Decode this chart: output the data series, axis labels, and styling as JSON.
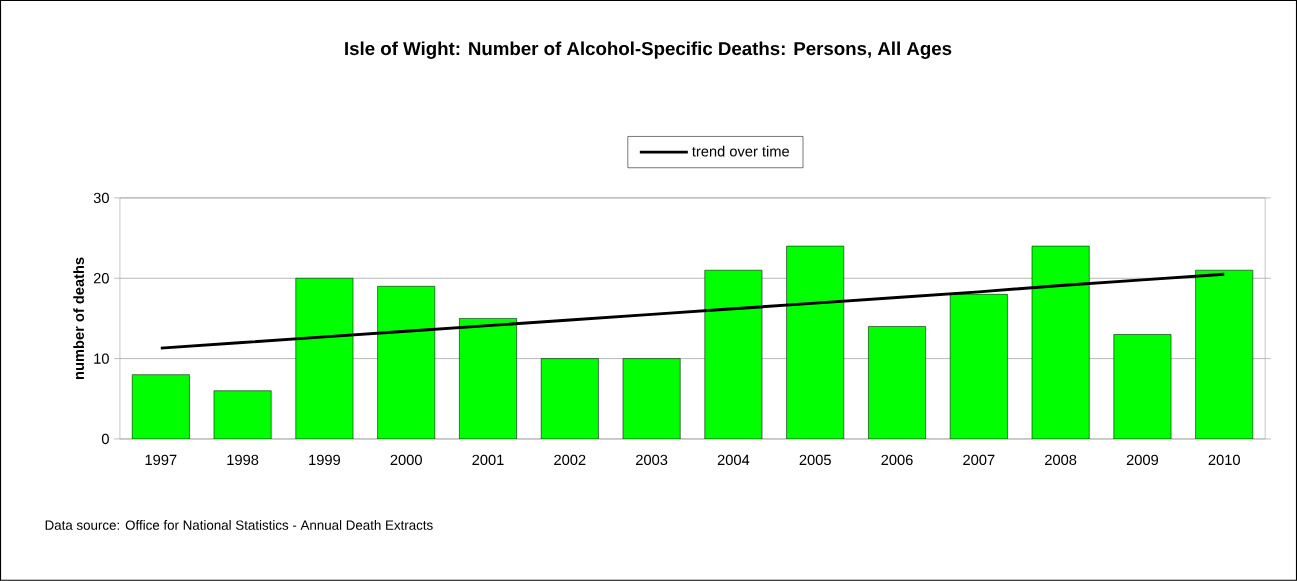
{
  "chart_data": {
    "type": "bar",
    "title": "Isle of Wight: Number of Alcohol-Specific Deaths: Persons, All Ages",
    "ylabel": "number of deaths",
    "categories": [
      "1997",
      "1998",
      "1999",
      "2000",
      "2001",
      "2002",
      "2003",
      "2004",
      "2005",
      "2006",
      "2007",
      "2008",
      "2009",
      "2010"
    ],
    "series": [
      {
        "color": "#00ff00",
        "values": [
          8,
          6,
          20,
          19,
          15,
          10,
          10,
          21,
          24,
          14,
          18,
          24,
          13,
          21
        ]
      },
      {
        "type": "line",
        "name": "trend over time",
        "color": "#000000",
        "values": [
          11.3,
          12.0,
          12.7,
          13.4,
          14.1,
          14.8,
          15.5,
          16.2,
          16.9,
          17.6,
          18.3,
          19.1,
          19.8,
          20.5
        ]
      }
    ],
    "ylim": [
      0,
      30
    ],
    "yticks": [
      0,
      10,
      20,
      30
    ],
    "grid": "y",
    "legend": "top",
    "annotations": [
      "Data source: Office for National Statistics - Annual Death Extracts"
    ]
  }
}
